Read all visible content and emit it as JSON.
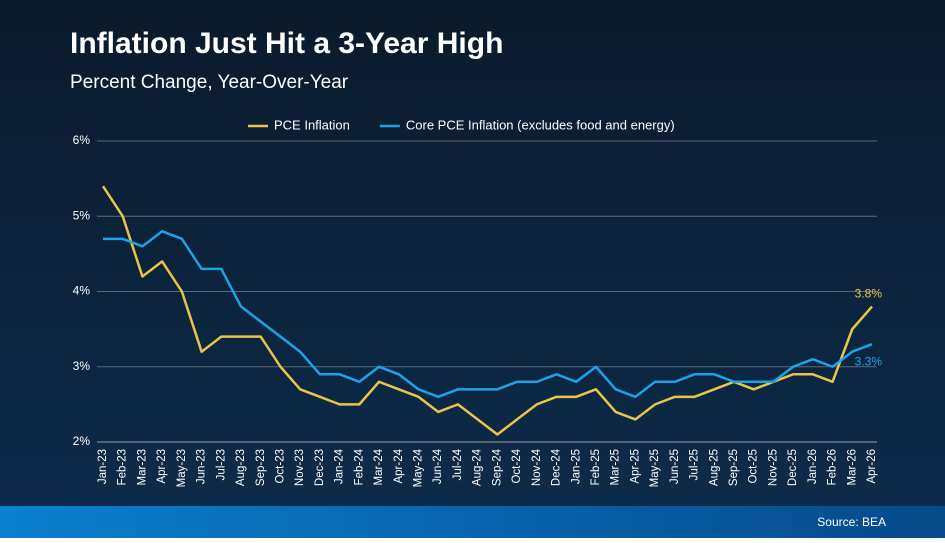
{
  "chart_data": {
    "type": "line",
    "title": "Inflation Just Hit a 3-Year High",
    "subtitle": "Percent Change, Year-Over-Year",
    "source": "Source: BEA",
    "categories": [
      "Jan-23",
      "Feb-23",
      "Mar-23",
      "Apr-23",
      "May-23",
      "Jun-23",
      "Jul-23",
      "Aug-23",
      "Sep-23",
      "Oct-23",
      "Nov-23",
      "Dec-23",
      "Jan-24",
      "Feb-24",
      "Mar-24",
      "Apr-24",
      "May-24",
      "Jun-24",
      "Jul-24",
      "Aug-24",
      "Sep-24",
      "Oct-24",
      "Nov-24",
      "Dec-24",
      "Jan-25",
      "Feb-25",
      "Mar-25",
      "Apr-25",
      "May-25",
      "Jun-25",
      "Jul-25",
      "Aug-25",
      "Sep-25",
      "Oct-25",
      "Nov-25",
      "Dec-25",
      "Jan-26",
      "Feb-26",
      "Mar-26",
      "Apr-26"
    ],
    "series": [
      {
        "name": "PCE Inflation",
        "color": "#e8c547",
        "values": [
          5.4,
          5.0,
          4.2,
          4.4,
          4.0,
          3.2,
          3.4,
          3.4,
          3.4,
          3.0,
          2.7,
          2.6,
          2.5,
          2.5,
          2.8,
          2.7,
          2.6,
          2.4,
          2.5,
          2.3,
          2.1,
          2.3,
          2.5,
          2.6,
          2.6,
          2.7,
          2.4,
          2.3,
          2.5,
          2.6,
          2.6,
          2.7,
          2.8,
          2.7,
          2.8,
          2.9,
          2.9,
          2.8,
          3.5,
          3.8
        ],
        "value_labels": [
          null,
          null,
          null,
          null,
          null,
          null,
          null,
          null,
          null,
          null,
          null,
          null,
          null,
          null,
          null,
          null,
          null,
          null,
          null,
          null,
          null,
          null,
          null,
          null,
          null,
          null,
          null,
          null,
          null,
          null,
          null,
          null,
          null,
          null,
          null,
          null,
          null,
          null,
          null,
          "3.8%"
        ]
      },
      {
        "name": "Core PCE Inflation (excludes food and energy)",
        "color": "#1aa3e8",
        "values": [
          4.7,
          4.7,
          4.6,
          4.8,
          4.7,
          4.3,
          4.3,
          3.8,
          3.6,
          3.4,
          3.2,
          2.9,
          2.9,
          2.8,
          3.0,
          2.9,
          2.7,
          2.6,
          2.7,
          2.7,
          2.7,
          2.8,
          2.8,
          2.9,
          2.8,
          3.0,
          2.7,
          2.6,
          2.8,
          2.8,
          2.9,
          2.9,
          2.8,
          2.8,
          2.8,
          3.0,
          3.1,
          3.0,
          3.2,
          3.3
        ],
        "value_labels": [
          null,
          null,
          null,
          null,
          null,
          null,
          null,
          null,
          null,
          null,
          null,
          null,
          null,
          null,
          null,
          null,
          null,
          null,
          null,
          null,
          null,
          null,
          null,
          null,
          null,
          null,
          null,
          null,
          null,
          null,
          null,
          null,
          null,
          null,
          null,
          null,
          null,
          null,
          null,
          "3.3%"
        ]
      }
    ],
    "ylim": [
      2,
      6
    ],
    "yticks": [
      {
        "value": 2,
        "label": "2%"
      },
      {
        "value": 3,
        "label": "3%"
      },
      {
        "value": 4,
        "label": "4%"
      },
      {
        "value": 5,
        "label": "5%"
      },
      {
        "value": 6,
        "label": "6%"
      }
    ],
    "grid": true,
    "legend": "top"
  }
}
